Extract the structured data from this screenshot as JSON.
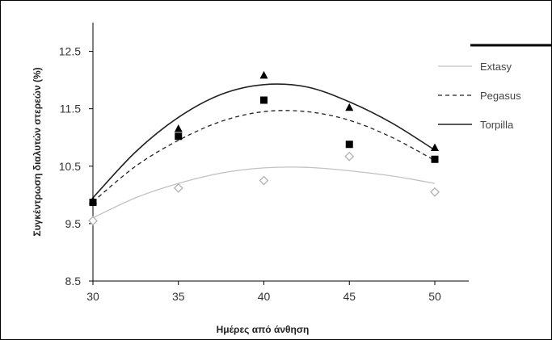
{
  "chart_data": {
    "type": "scatter",
    "xlabel": "Ημέρες από άνθηση",
    "ylabel": "Συγκέντρωση διαλυτών στερεών (%)",
    "xlim": [
      30,
      50
    ],
    "ylim": [
      8.5,
      13.0
    ],
    "x_ticks": [
      "30",
      "35",
      "40",
      "45",
      "50"
    ],
    "y_ticks": [
      "12.5",
      "11.5",
      "10.5",
      "9.5",
      "8.5"
    ],
    "x_tick_values": [
      30,
      35,
      40,
      45,
      50
    ],
    "y_tick_values": [
      12.5,
      11.5,
      10.5,
      9.5,
      8.5
    ],
    "grid": false,
    "legend_position": "right",
    "series": [
      {
        "name": "Extasy",
        "marker": "diamond-open",
        "line": "solid",
        "color": "#c2c2c2",
        "x": [
          30,
          35,
          40,
          45,
          50
        ],
        "y": [
          9.55,
          10.12,
          10.25,
          10.67,
          10.05
        ],
        "fit_x": [
          30,
          32.5,
          35,
          37.5,
          40,
          42.5,
          45,
          47.5,
          50
        ],
        "fit_y": [
          9.6,
          9.95,
          10.2,
          10.38,
          10.47,
          10.48,
          10.42,
          10.33,
          10.2
        ]
      },
      {
        "name": "Pegasus",
        "marker": "square",
        "line": "dashed",
        "color": "#222222",
        "x": [
          30,
          35,
          40,
          45,
          50
        ],
        "y": [
          9.87,
          11.02,
          11.65,
          10.88,
          10.62
        ],
        "fit_x": [
          30,
          32.5,
          35,
          37.5,
          40,
          42.5,
          45,
          47.5,
          50
        ],
        "fit_y": [
          9.88,
          10.5,
          10.95,
          11.28,
          11.45,
          11.45,
          11.3,
          11.0,
          10.6
        ]
      },
      {
        "name": "Torpilla",
        "marker": "triangle",
        "line": "solid",
        "color": "#222222",
        "x": [
          30,
          35,
          40,
          45,
          50
        ],
        "y": [
          9.9,
          11.15,
          12.08,
          11.52,
          10.82
        ],
        "fit_x": [
          30,
          32.5,
          35,
          37.5,
          40,
          42.5,
          45,
          47.5,
          50
        ],
        "fit_y": [
          9.95,
          10.75,
          11.35,
          11.75,
          11.92,
          11.88,
          11.62,
          11.25,
          10.78
        ]
      }
    ]
  }
}
